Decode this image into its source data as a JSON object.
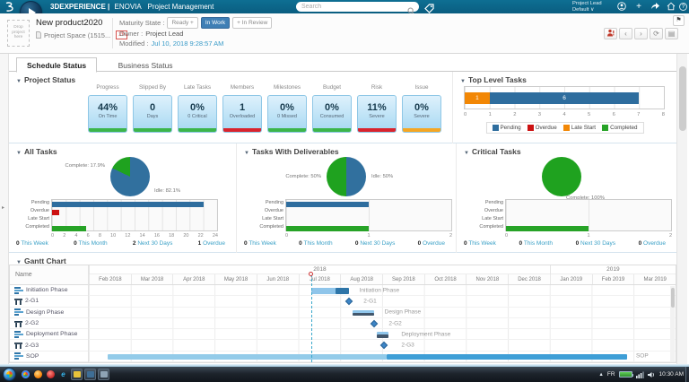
{
  "icons": {
    "collapse": "▼",
    "caret_down": "∨",
    "chevron_left": "‹",
    "chevron_right": "›",
    "refresh": "⟳",
    "panel": "▤",
    "flag": "⚑",
    "plus": "+",
    "expand_arrow": "▸",
    "help": "?"
  },
  "top_bar": {
    "brand": "3DEXPERIENCE |",
    "app": "ENOVIA",
    "page": "Project Management",
    "search_placeholder": "Search",
    "user_role": "Project Lead",
    "user_profile": "Default"
  },
  "context_bar": {
    "drop_zone": "Drop project here",
    "title": "New product2020",
    "subtitle": "Project Space (1515...",
    "badge": "2h",
    "maturity_label": "Maturity State :",
    "maturity_prev": "Ready +",
    "maturity_current": "In Work",
    "maturity_next": "+ In Review",
    "owner_label": "Owner :",
    "owner_value": "Project Lead",
    "modified_label": "Modified :",
    "modified_value": "Jul 10, 2018 9:28:57 AM"
  },
  "tabs": {
    "schedule": "Schedule Status",
    "business": "Business Status"
  },
  "project_status": {
    "title": "Project Status",
    "cards": [
      {
        "header": "Progress",
        "value": "44%",
        "sub": "On Time",
        "stripe": "#3cb54a"
      },
      {
        "header": "Slipped By",
        "value": "0",
        "sub": "Days",
        "stripe": "#3cb54a"
      },
      {
        "header": "Late Tasks",
        "value": "0%",
        "sub": "0 Critical",
        "stripe": "#3cb54a"
      },
      {
        "header": "Members",
        "value": "1",
        "sub": "Overloaded",
        "stripe": "#d9232d"
      },
      {
        "header": "Milestones",
        "value": "0%",
        "sub": "0 Missed",
        "stripe": "#3cb54a"
      },
      {
        "header": "Budget",
        "value": "0%",
        "sub": "Consumed",
        "stripe": "#3cb54a"
      },
      {
        "header": "Risk",
        "value": "11%",
        "sub": "Severe",
        "stripe": "#d9232d"
      },
      {
        "header": "Issue",
        "value": "0%",
        "sub": "Severe",
        "stripe": "#f5a623"
      }
    ]
  },
  "top_level_tasks": {
    "title": "Top Level Tasks",
    "axis_max": 8,
    "ticks": [
      "0",
      "1",
      "2",
      "3",
      "4",
      "5",
      "6",
      "7",
      "8"
    ],
    "segments": [
      {
        "label": "1",
        "value": 1,
        "color": "#f28705"
      },
      {
        "label": "6",
        "value": 6,
        "color": "#2e6d9e"
      }
    ],
    "legend": [
      {
        "label": "Pending",
        "color": "#2e6d9e"
      },
      {
        "label": "Overdue",
        "color": "#cc1111"
      },
      {
        "label": "Late Start",
        "color": "#f28705"
      },
      {
        "label": "Completed",
        "color": "#27a327"
      }
    ]
  },
  "all_tasks": {
    "title": "All Tasks",
    "pie": {
      "slices": [
        {
          "pct": 82.1,
          "color": "#31709e"
        },
        {
          "pct": 17.9,
          "color": "#1fa21f"
        }
      ],
      "label_complete": "Complete: 17.9%",
      "label_idle": "Idle: 82.1%"
    },
    "rows": [
      {
        "label": "Pending",
        "value": 22,
        "color": "#2e6d9e"
      },
      {
        "label": "Overdue",
        "value": 1,
        "color": "#cc1111"
      },
      {
        "label": "Late Start",
        "value": 0,
        "color": "#f28705"
      },
      {
        "label": "Completed",
        "value": 5,
        "color": "#27a327"
      }
    ],
    "axis_max": 24,
    "ticks": [
      "0",
      "2",
      "4",
      "6",
      "8",
      "10",
      "12",
      "14",
      "16",
      "18",
      "20",
      "22",
      "24"
    ],
    "links": [
      {
        "n": "0",
        "t": "This Week"
      },
      {
        "n": "0",
        "t": "This Month"
      },
      {
        "n": "2",
        "t": "Next 30 Days"
      },
      {
        "n": "1",
        "t": "Overdue"
      }
    ]
  },
  "tasks_deliverables": {
    "title": "Tasks With Deliverables",
    "pie": {
      "slices": [
        {
          "pct": 50,
          "color": "#31709e"
        },
        {
          "pct": 50,
          "color": "#1fa21f"
        }
      ],
      "label_complete": "Complete: 50%",
      "label_idle": "Idle: 50%"
    },
    "rows": [
      {
        "label": "Pending",
        "value": 1,
        "color": "#2e6d9e"
      },
      {
        "label": "Overdue",
        "value": 0,
        "color": "#cc1111"
      },
      {
        "label": "Late Start",
        "value": 0,
        "color": "#f28705"
      },
      {
        "label": "Completed",
        "value": 1,
        "color": "#27a327"
      }
    ],
    "axis_max": 2,
    "ticks": [
      "0",
      "1",
      "2"
    ],
    "links": [
      {
        "n": "0",
        "t": "This Week"
      },
      {
        "n": "0",
        "t": "This Month"
      },
      {
        "n": "0",
        "t": "Next 30 Days"
      },
      {
        "n": "0",
        "t": "Overdue"
      }
    ]
  },
  "critical_tasks": {
    "title": "Critical Tasks",
    "pie": {
      "slices": [
        {
          "pct": 100,
          "color": "#1fa21f"
        }
      ],
      "label_complete": "Complete: 100%",
      "label_idle": ""
    },
    "rows": [
      {
        "label": "Pending",
        "value": 0,
        "color": "#2e6d9e"
      },
      {
        "label": "Overdue",
        "value": 0,
        "color": "#cc1111"
      },
      {
        "label": "Late Start",
        "value": 0,
        "color": "#f28705"
      },
      {
        "label": "Completed",
        "value": 1,
        "color": "#27a327"
      }
    ],
    "axis_max": 2,
    "ticks": [
      "0",
      "1",
      "2"
    ],
    "links": [
      {
        "n": "0",
        "t": "This Week"
      },
      {
        "n": "0",
        "t": "This Month"
      },
      {
        "n": "0",
        "t": "Next 30 Days"
      },
      {
        "n": "0",
        "t": "Overdue"
      }
    ]
  },
  "gantt": {
    "title": "Gantt Chart",
    "name_header": "Name",
    "month_count": 14,
    "today": 5.3,
    "years": [
      {
        "label": "2018",
        "span": 11
      },
      {
        "label": "2019",
        "span": 3
      }
    ],
    "months": [
      "Feb 2018",
      "Mar 2018",
      "Apr 2018",
      "May 2018",
      "Jun 2018",
      "Jul 2018",
      "Aug 2018",
      "Sep 2018",
      "Oct 2018",
      "Nov 2018",
      "Dec 2018",
      "Jan 2019",
      "Feb 2019",
      "Mar 2019"
    ],
    "rows": [
      {
        "name": "Initiation Phase",
        "bar_label": "Initiation Phase",
        "label_at": 6.35,
        "segments": [
          {
            "start": 5.3,
            "end": 6.2,
            "color": "#8fc5ea"
          },
          {
            "start": 5.88,
            "end": 6.2,
            "color": "#2e75a8"
          }
        ]
      },
      {
        "name": "2-G1",
        "bar_label": "2-G1",
        "label_at": 6.45,
        "milestone_at": 6.2,
        "segments": []
      },
      {
        "name": "Design Phase",
        "bar_label": "Design Phase",
        "label_at": 6.95,
        "segments": [
          {
            "start": 6.3,
            "end": 6.8,
            "color": "#8fc5ea"
          },
          {
            "start": 6.3,
            "end": 6.8,
            "color": "#42566b",
            "half": true
          }
        ]
      },
      {
        "name": "2-G2",
        "bar_label": "2-G2",
        "label_at": 7.05,
        "milestone_at": 6.8,
        "segments": []
      },
      {
        "name": "Deployment Phase",
        "bar_label": "Deployment Phase",
        "label_at": 7.35,
        "segments": [
          {
            "start": 6.88,
            "end": 7.15,
            "color": "#8fc5ea"
          },
          {
            "start": 6.88,
            "end": 7.15,
            "color": "#42566b",
            "half": true
          }
        ]
      },
      {
        "name": "2-G3",
        "bar_label": "2-G3",
        "label_at": 7.35,
        "milestone_at": 7.05,
        "segments": []
      },
      {
        "name": "SOP",
        "bar_label": "SOP",
        "label_at": 12.95,
        "segments": [
          {
            "start": 0.45,
            "end": 7.1,
            "color": "#93cbe9"
          },
          {
            "start": 7.1,
            "end": 12.85,
            "color": "#3e9ed6"
          }
        ]
      }
    ]
  },
  "taskbar": {
    "language": "FR",
    "time": "10:30 AM"
  }
}
